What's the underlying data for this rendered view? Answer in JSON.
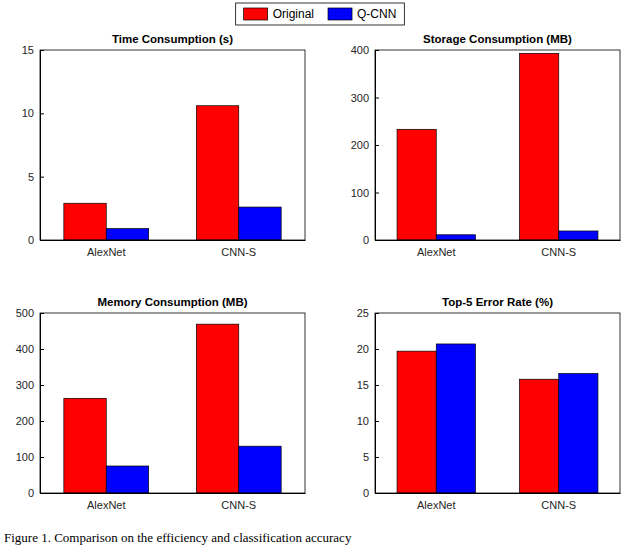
{
  "chart_data": [
    {
      "type": "bar",
      "title": "Time Consumption (s)",
      "categories": [
        "AlexNet",
        "CNN-S"
      ],
      "series": [
        {
          "name": "Original",
          "color": "#ff0000",
          "values": [
            2.9,
            10.6
          ]
        },
        {
          "name": "Q-CNN",
          "color": "#0000ff",
          "values": [
            0.9,
            2.6
          ]
        }
      ],
      "ylim": [
        0,
        15
      ],
      "yticks": [
        0,
        5,
        10,
        15
      ],
      "grid": false,
      "legend": "top"
    },
    {
      "type": "bar",
      "title": "Storage Consumption (MB)",
      "categories": [
        "AlexNet",
        "CNN-S"
      ],
      "series": [
        {
          "name": "Original",
          "color": "#ff0000",
          "values": [
            233,
            393
          ]
        },
        {
          "name": "Q-CNN",
          "color": "#0000ff",
          "values": [
            11,
            19
          ]
        }
      ],
      "ylim": [
        0,
        400
      ],
      "yticks": [
        0,
        100,
        200,
        300,
        400
      ],
      "grid": false
    },
    {
      "type": "bar",
      "title": "Memory Consumption (MB)",
      "categories": [
        "AlexNet",
        "CNN-S"
      ],
      "series": [
        {
          "name": "Original",
          "color": "#ff0000",
          "values": [
            263,
            469
          ]
        },
        {
          "name": "Q-CNN",
          "color": "#0000ff",
          "values": [
            75,
            130
          ]
        }
      ],
      "ylim": [
        0,
        500
      ],
      "yticks": [
        0,
        100,
        200,
        300,
        400,
        500
      ],
      "grid": false
    },
    {
      "type": "bar",
      "title": "Top-5 Error Rate (%)",
      "categories": [
        "AlexNet",
        "CNN-S"
      ],
      "series": [
        {
          "name": "Original",
          "color": "#ff0000",
          "values": [
            19.7,
            15.8
          ]
        },
        {
          "name": "Q-CNN",
          "color": "#0000ff",
          "values": [
            20.7,
            16.6
          ]
        }
      ],
      "ylim": [
        0,
        25
      ],
      "yticks": [
        0,
        5,
        10,
        15,
        20,
        25
      ],
      "grid": false
    }
  ],
  "caption": "Figure 1. Comparison on the efficiency and classification accuracy"
}
